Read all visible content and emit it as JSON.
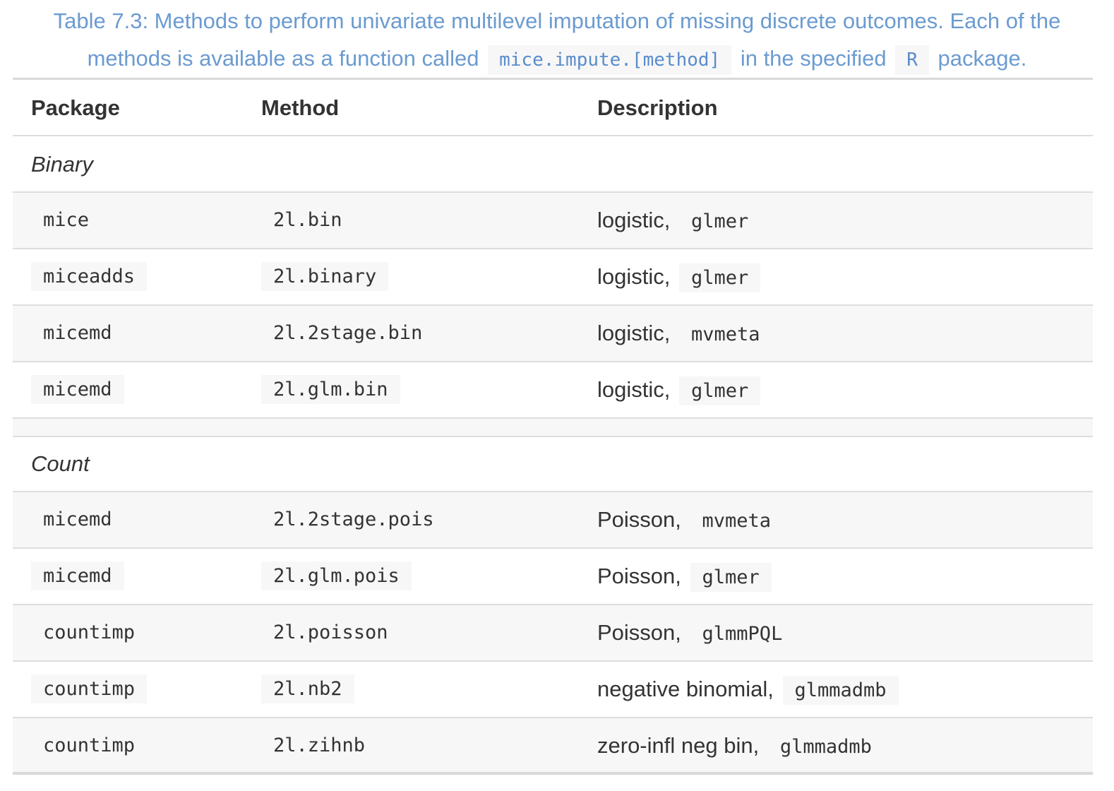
{
  "caption": {
    "line1": "Table 7.3: Methods to perform univariate multilevel imputation of missing discrete outcomes. Each of the",
    "line2_pre": "methods is available as a function called",
    "line2_code": "mice.impute.[method]",
    "line2_mid": "in the specified",
    "line2_code2": "R",
    "line2_post": "package."
  },
  "header": {
    "package": "Package",
    "method": "Method",
    "description": "Description"
  },
  "groups": [
    {
      "label": "Binary",
      "rows": [
        {
          "package": "mice",
          "method": "2l.bin",
          "desc": "logistic,",
          "fn": "glmer"
        },
        {
          "package": "miceadds",
          "method": "2l.binary",
          "desc": "logistic,",
          "fn": "glmer"
        },
        {
          "package": "micemd",
          "method": "2l.2stage.bin",
          "desc": "logistic,",
          "fn": "mvmeta"
        },
        {
          "package": "micemd",
          "method": "2l.glm.bin",
          "desc": "logistic,",
          "fn": "glmer"
        }
      ]
    },
    {
      "label": "Count",
      "rows": [
        {
          "package": "micemd",
          "method": "2l.2stage.pois",
          "desc": "Poisson,",
          "fn": "mvmeta"
        },
        {
          "package": "micemd",
          "method": "2l.glm.pois",
          "desc": "Poisson,",
          "fn": "glmer"
        },
        {
          "package": "countimp",
          "method": "2l.poisson",
          "desc": "Poisson,",
          "fn": "glmmPQL"
        },
        {
          "package": "countimp",
          "method": "2l.nb2",
          "desc": "negative binomial,",
          "fn": "glmmadmb"
        },
        {
          "package": "countimp",
          "method": "2l.zihnb",
          "desc": "zero-infl neg bin,",
          "fn": "glmmadmb"
        }
      ]
    }
  ]
}
